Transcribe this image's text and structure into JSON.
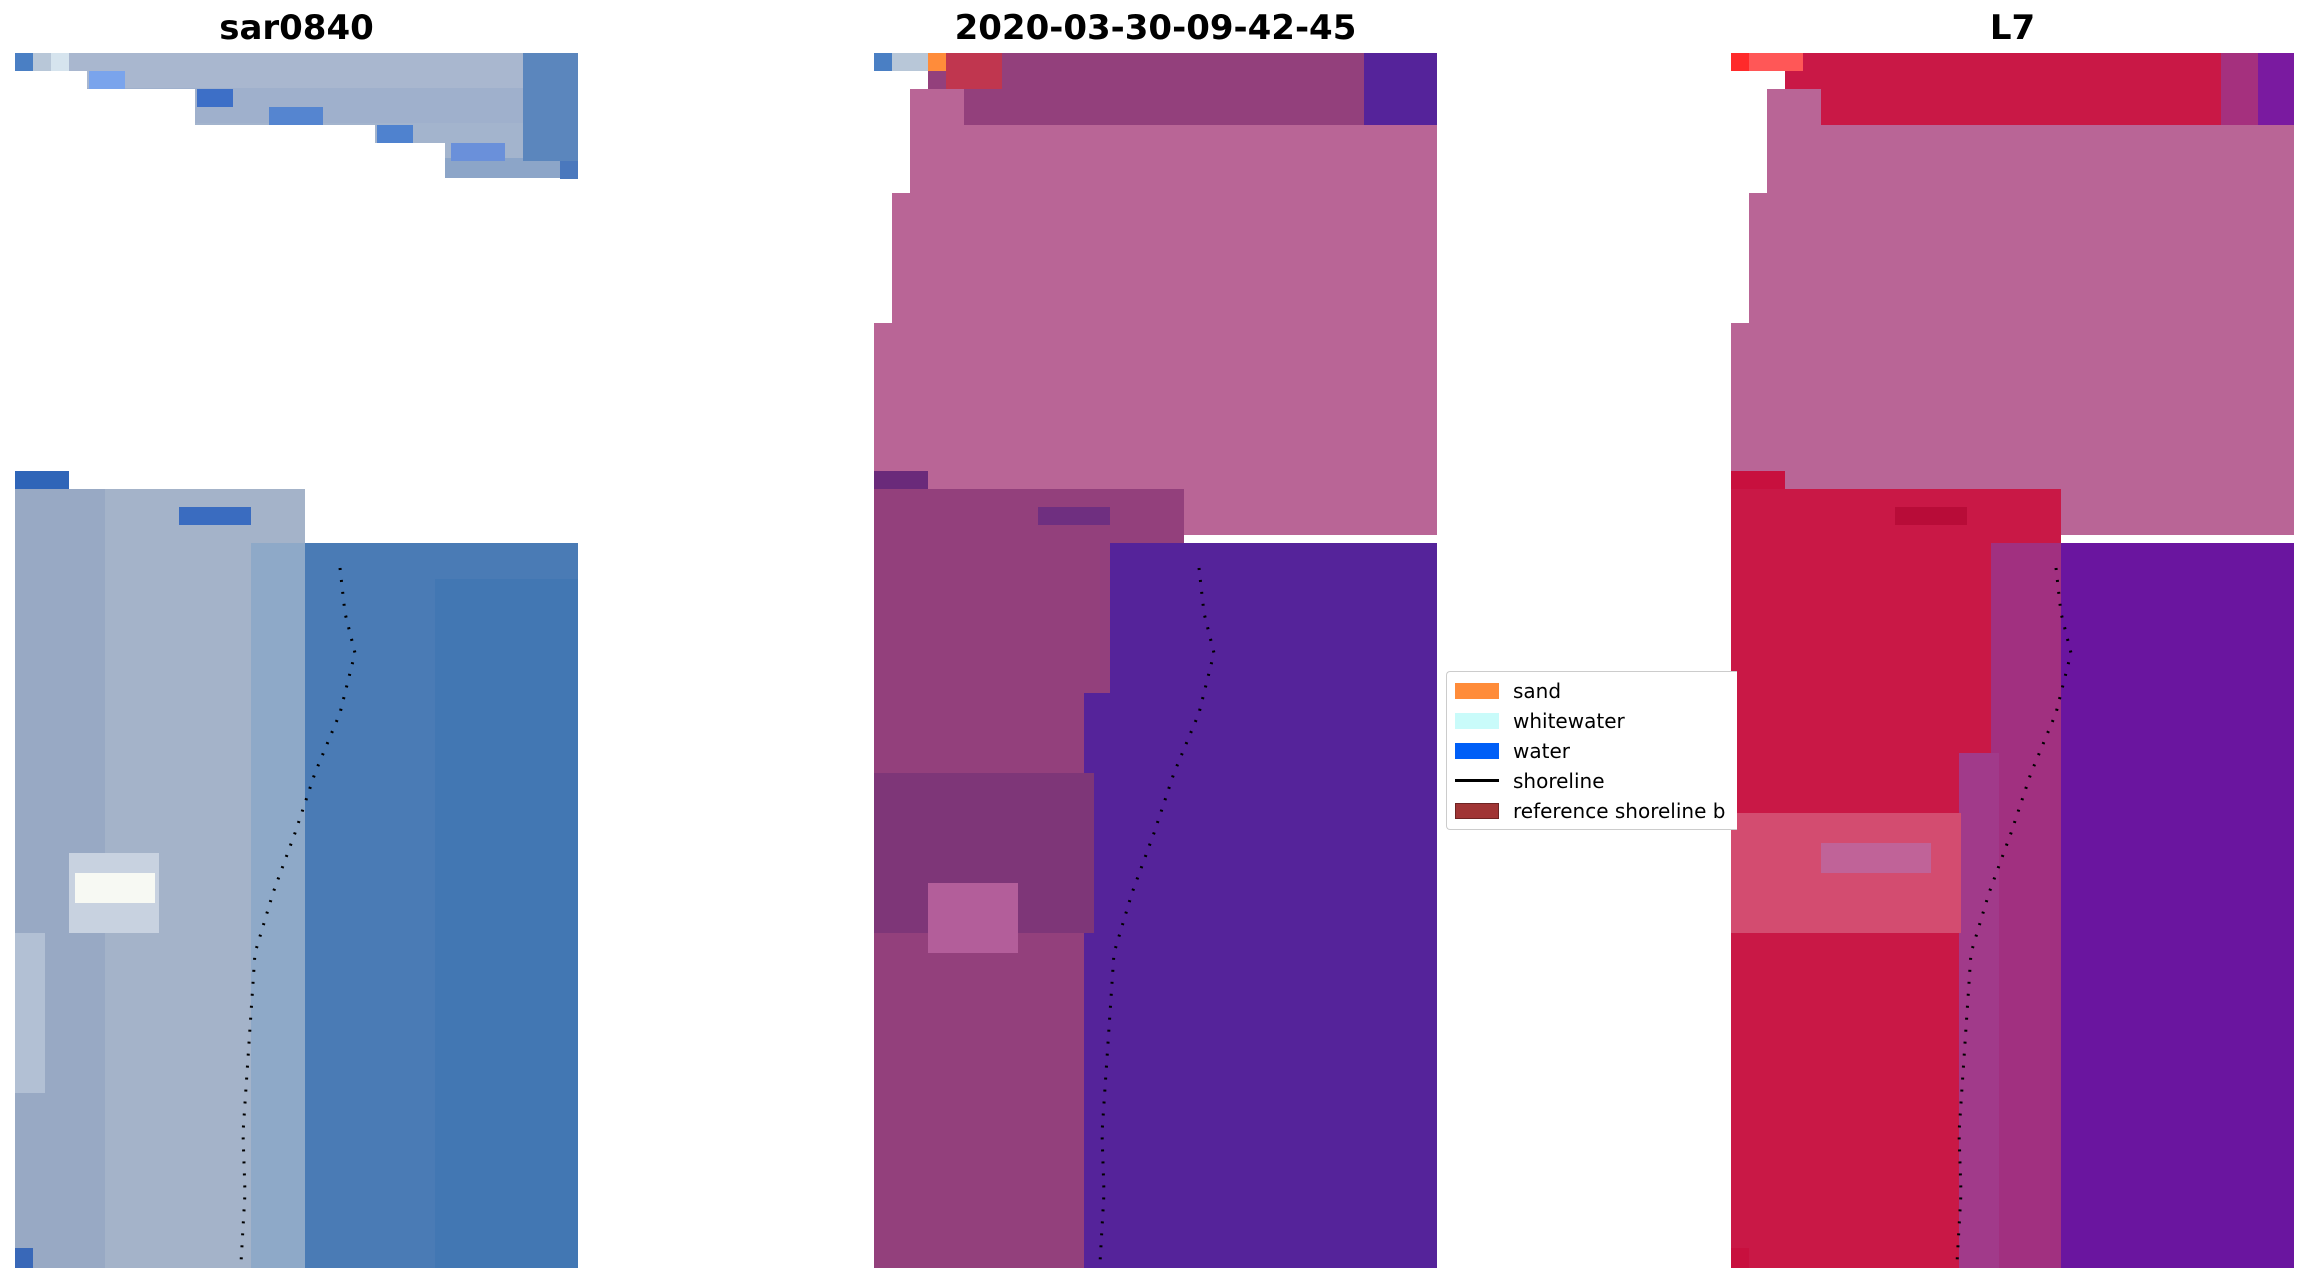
{
  "panels": [
    {
      "title": "sar0840",
      "image": "rgb-satellite-image"
    },
    {
      "title": "2020-03-30-09-42-45",
      "image": "classified-image-overlay"
    },
    {
      "title": "L7",
      "image": "mndwi-index-image"
    }
  ],
  "legend": {
    "items": [
      {
        "label": "sand",
        "type": "patch",
        "color": "#ff8c3a"
      },
      {
        "label": "whitewater",
        "type": "patch",
        "color": "#c9fbfa"
      },
      {
        "label": "water",
        "type": "patch",
        "color": "#005ff7"
      },
      {
        "label": "shoreline",
        "type": "line",
        "color": "#000000"
      },
      {
        "label": "reference shoreline b",
        "type": "patch",
        "color": "#a03535"
      }
    ]
  },
  "colors": {
    "rgb_water": "#4a7bb5",
    "rgb_land": "#a6b4cc",
    "class_land": "#93407c",
    "class_water": "#55239a",
    "class_mask": "#b96596",
    "index_land": "#c91846",
    "index_water": "#6a159f",
    "index_mask": "#b96596"
  }
}
